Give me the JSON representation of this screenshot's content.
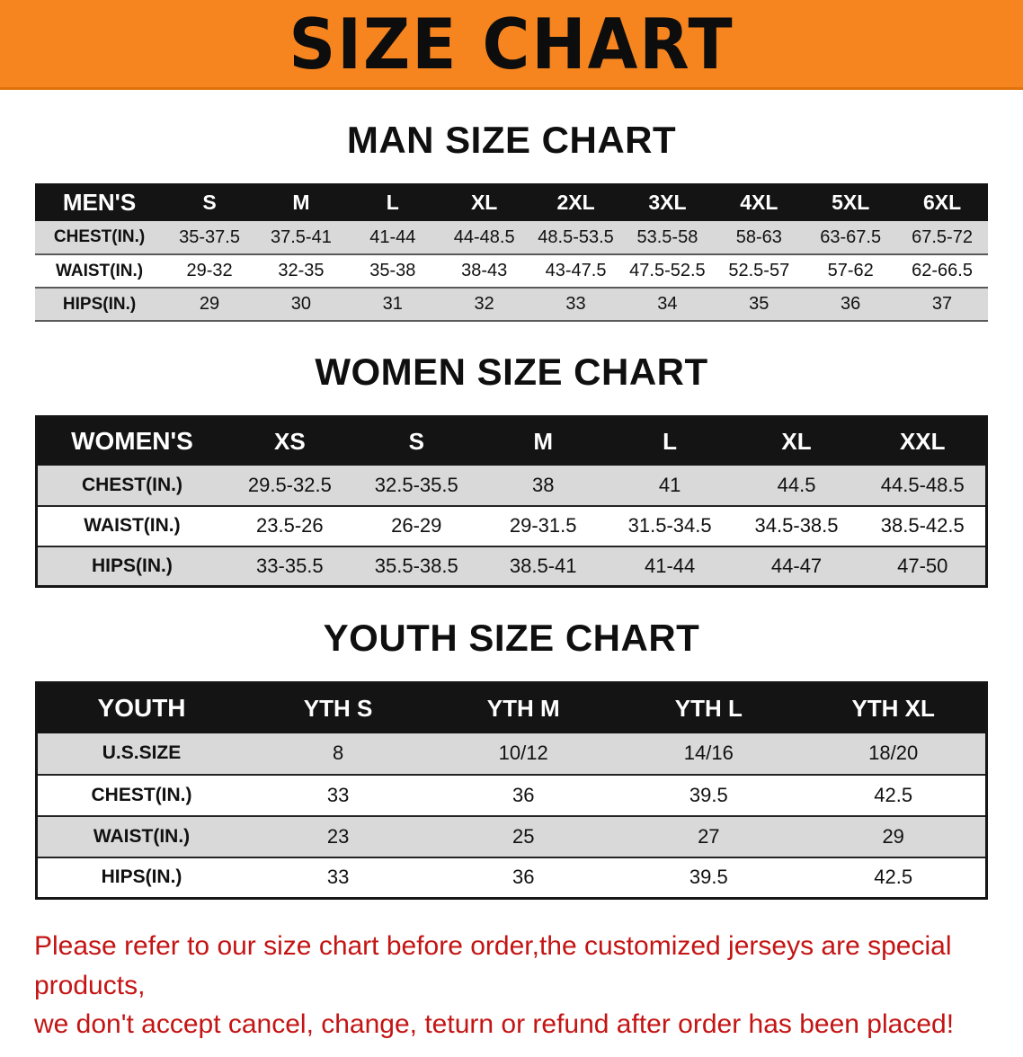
{
  "banner": {
    "title": "SIZE CHART",
    "bg_color": "#f6841f",
    "text_color": "#0d0d0d"
  },
  "colors": {
    "table_header_bg": "#141414",
    "row_stripe": "#d9d9d9",
    "disclaimer_red": "#c41414"
  },
  "sections": [
    {
      "heading": "MAN SIZE CHART",
      "table": {
        "header": [
          "MEN'S",
          "S",
          "M",
          "L",
          "XL",
          "2XL",
          "3XL",
          "4XL",
          "5XL",
          "6XL"
        ],
        "rows": [
          [
            "CHEST(IN.)",
            "35-37.5",
            "37.5-41",
            "41-44",
            "44-48.5",
            "48.5-53.5",
            "53.5-58",
            "58-63",
            "63-67.5",
            "67.5-72"
          ],
          [
            "WAIST(IN.)",
            "29-32",
            "32-35",
            "35-38",
            "38-43",
            "43-47.5",
            "47.5-52.5",
            "52.5-57",
            "57-62",
            "62-66.5"
          ],
          [
            "HIPS(IN.)",
            "29",
            "30",
            "31",
            "32",
            "33",
            "34",
            "35",
            "36",
            "37"
          ]
        ]
      }
    },
    {
      "heading": "WOMEN SIZE CHART",
      "table": {
        "header": [
          "WOMEN'S",
          "XS",
          "S",
          "M",
          "L",
          "XL",
          "XXL"
        ],
        "rows": [
          [
            "CHEST(IN.)",
            "29.5-32.5",
            "32.5-35.5",
            "38",
            "41",
            "44.5",
            "44.5-48.5"
          ],
          [
            "WAIST(IN.)",
            "23.5-26",
            "26-29",
            "29-31.5",
            "31.5-34.5",
            "34.5-38.5",
            "38.5-42.5"
          ],
          [
            "HIPS(IN.)",
            "33-35.5",
            "35.5-38.5",
            "38.5-41",
            "41-44",
            "44-47",
            "47-50"
          ]
        ]
      }
    },
    {
      "heading": "YOUTH SIZE CHART",
      "table": {
        "header": [
          "YOUTH",
          "YTH S",
          "YTH M",
          "YTH L",
          "YTH XL"
        ],
        "rows": [
          [
            "U.S.SIZE",
            "8",
            "10/12",
            "14/16",
            "18/20"
          ],
          [
            "CHEST(IN.)",
            "33",
            "36",
            "39.5",
            "42.5"
          ],
          [
            "WAIST(IN.)",
            "23",
            "25",
            "27",
            "29"
          ],
          [
            "HIPS(IN.)",
            "33",
            "36",
            "39.5",
            "42.5"
          ]
        ]
      }
    }
  ],
  "disclaimer": {
    "lines": [
      "Please refer to our size chart before order,the customized jerseys are special products,",
      "we don't accept cancel, change, teturn or refund after order has been placed!"
    ]
  }
}
